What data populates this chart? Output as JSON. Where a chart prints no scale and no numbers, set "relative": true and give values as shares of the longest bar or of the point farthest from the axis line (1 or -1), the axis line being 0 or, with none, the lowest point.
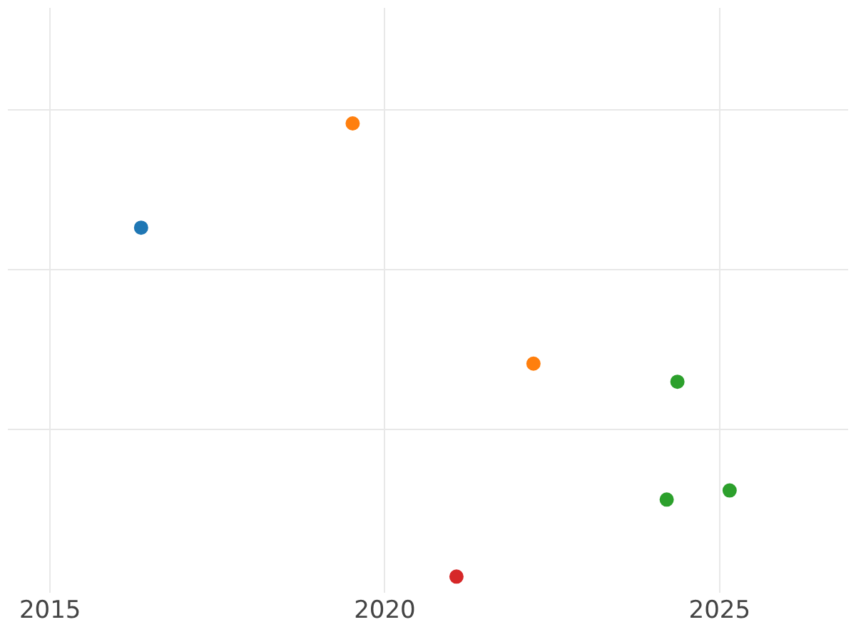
{
  "chart_data": {
    "type": "scatter",
    "relative": true,
    "xlim": [
      2014.37,
      2026.92
    ],
    "xticks": [
      2015,
      2020,
      2025
    ],
    "grid": true,
    "legend": false,
    "marker": "circle",
    "series": [
      {
        "color": "#1f77b4",
        "x": [
          2016.36
        ],
        "values": [
          0.77
        ]
      },
      {
        "color": "#ff7f0e",
        "x": [
          2019.52,
          2022.22
        ],
        "values": [
          1.0,
          0.47
        ]
      },
      {
        "color": "#2ca02c",
        "x": [
          2024.37,
          2024.21,
          2025.15
        ],
        "values": [
          0.43,
          0.17,
          0.19
        ]
      },
      {
        "color": "#d62728",
        "x": [
          2021.07
        ],
        "values": [
          0.0
        ]
      }
    ]
  }
}
